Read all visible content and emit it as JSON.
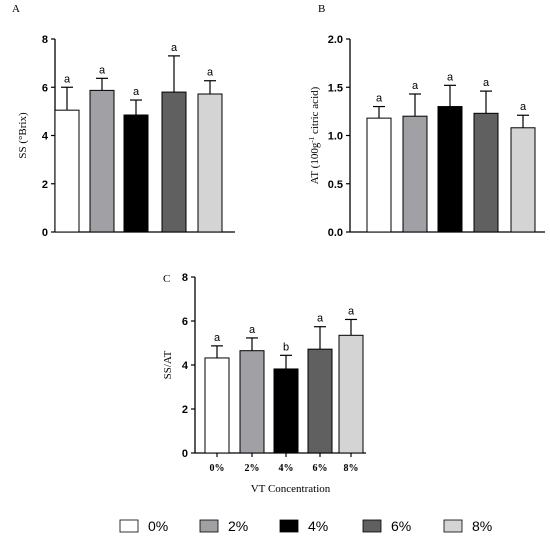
{
  "legend": {
    "items": [
      {
        "label": "0%",
        "color": "#ffffff"
      },
      {
        "label": "2%",
        "color": "#a0a0a5"
      },
      {
        "label": "4%",
        "color": "#000000"
      },
      {
        "label": "6%",
        "color": "#606060"
      },
      {
        "label": "8%",
        "color": "#d4d4d4"
      }
    ],
    "placement": "bottom"
  },
  "chart_data": [
    {
      "panel": "A",
      "type": "bar",
      "ylabel": "SS (°Brix)",
      "ylim": [
        0,
        8
      ],
      "yticks": [
        "0",
        "2",
        "4",
        "6",
        "8"
      ],
      "categories": [
        "0%",
        "2%",
        "4%",
        "6%",
        "8%"
      ],
      "values": [
        5.05,
        5.87,
        4.85,
        5.8,
        5.72
      ],
      "errors": [
        0.95,
        0.5,
        0.62,
        1.5,
        0.55
      ],
      "letters": [
        "a",
        "a",
        "a",
        "a",
        "a"
      ],
      "colors": [
        "#ffffff",
        "#a0a0a5",
        "#000000",
        "#606060",
        "#d4d4d4"
      ],
      "grid": false
    },
    {
      "panel": "B",
      "type": "bar",
      "ylabel": "AT (100g",
      "ylabel_sup": "-1",
      "ylabel_rest": " citric acid)",
      "ylim": [
        0,
        2.0
      ],
      "yticks": [
        "0.0",
        "0.5",
        "1.0",
        "1.5",
        "2.0"
      ],
      "categories": [
        "0%",
        "2%",
        "4%",
        "6%",
        "8%"
      ],
      "values": [
        1.18,
        1.2,
        1.3,
        1.23,
        1.08
      ],
      "errors": [
        0.12,
        0.23,
        0.22,
        0.23,
        0.13
      ],
      "letters": [
        "a",
        "a",
        "a",
        "a",
        "a"
      ],
      "colors": [
        "#ffffff",
        "#a0a0a5",
        "#000000",
        "#606060",
        "#d4d4d4"
      ],
      "grid": false
    },
    {
      "panel": "C",
      "type": "bar",
      "ylabel": "SS/AT",
      "xlabel": "VT Concentration",
      "ylim": [
        0,
        8
      ],
      "yticks": [
        "0",
        "2",
        "4",
        "6",
        "8"
      ],
      "categories": [
        "0%",
        "2%",
        "4%",
        "6%",
        "8%"
      ],
      "show_xticklabels": true,
      "values": [
        4.32,
        4.65,
        3.82,
        4.72,
        5.35
      ],
      "errors": [
        0.55,
        0.58,
        0.62,
        1.02,
        0.72
      ],
      "letters": [
        "a",
        "a",
        "b",
        "a",
        "a"
      ],
      "colors": [
        "#ffffff",
        "#a0a0a5",
        "#000000",
        "#606060",
        "#d4d4d4"
      ],
      "grid": false
    }
  ]
}
